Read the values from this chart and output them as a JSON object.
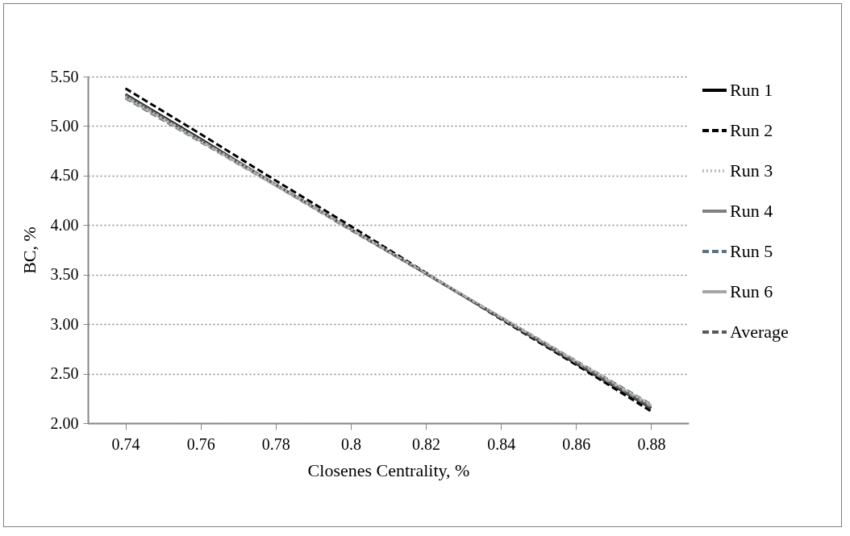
{
  "chart_data": {
    "type": "line",
    "xlabel": "Closenes Centrality, %",
    "ylabel": "BC, %",
    "categories": [
      "0.74",
      "0.76",
      "0.78",
      "0.8",
      "0.82",
      "0.84",
      "0.86",
      "0.88"
    ],
    "series": [
      {
        "name": "Run 1",
        "color": "#000000",
        "line_style": "solid",
        "values": [
          5.32,
          4.87,
          4.41,
          3.96,
          3.51,
          3.06,
          2.6,
          2.15
        ]
      },
      {
        "name": "Run 2",
        "color": "#000000",
        "line_style": "dashed",
        "values": [
          5.38,
          4.92,
          4.45,
          3.99,
          3.52,
          3.05,
          2.59,
          2.12
        ]
      },
      {
        "name": "Run 3",
        "color": "#bfbfbf",
        "line_style": "dotted",
        "values": [
          5.3,
          4.85,
          4.41,
          3.96,
          3.52,
          3.07,
          2.63,
          2.18
        ]
      },
      {
        "name": "Run 4",
        "color": "#7f7f7f",
        "line_style": "solid",
        "values": [
          5.31,
          4.86,
          4.41,
          3.96,
          3.51,
          3.06,
          2.61,
          2.16
        ]
      },
      {
        "name": "Run 5",
        "color": "#5b7383",
        "line_style": "dashed",
        "values": [
          5.28,
          4.84,
          4.4,
          3.95,
          3.51,
          3.07,
          2.63,
          2.19
        ]
      },
      {
        "name": "Run 6",
        "color": "#a6a6a6",
        "line_style": "solid",
        "values": [
          5.29,
          4.85,
          4.4,
          3.96,
          3.51,
          3.07,
          2.62,
          2.18
        ]
      },
      {
        "name": "Average",
        "color": "#595959",
        "line_style": "dashed",
        "values": [
          5.31,
          4.86,
          4.41,
          3.96,
          3.51,
          3.06,
          2.61,
          2.16
        ]
      }
    ],
    "ylim": [
      2,
      5.5
    ],
    "yticks": [
      {
        "value": 2,
        "label": "2.00"
      },
      {
        "value": 2.5,
        "label": "2.50"
      },
      {
        "value": 3,
        "label": "3.00"
      },
      {
        "value": 3.5,
        "label": "3.50"
      },
      {
        "value": 4,
        "label": "4.00"
      },
      {
        "value": 4.5,
        "label": "4.50"
      },
      {
        "value": 5,
        "label": "5.00"
      },
      {
        "value": 5.5,
        "label": "5.50"
      }
    ],
    "grid": "y",
    "legend": "right"
  }
}
